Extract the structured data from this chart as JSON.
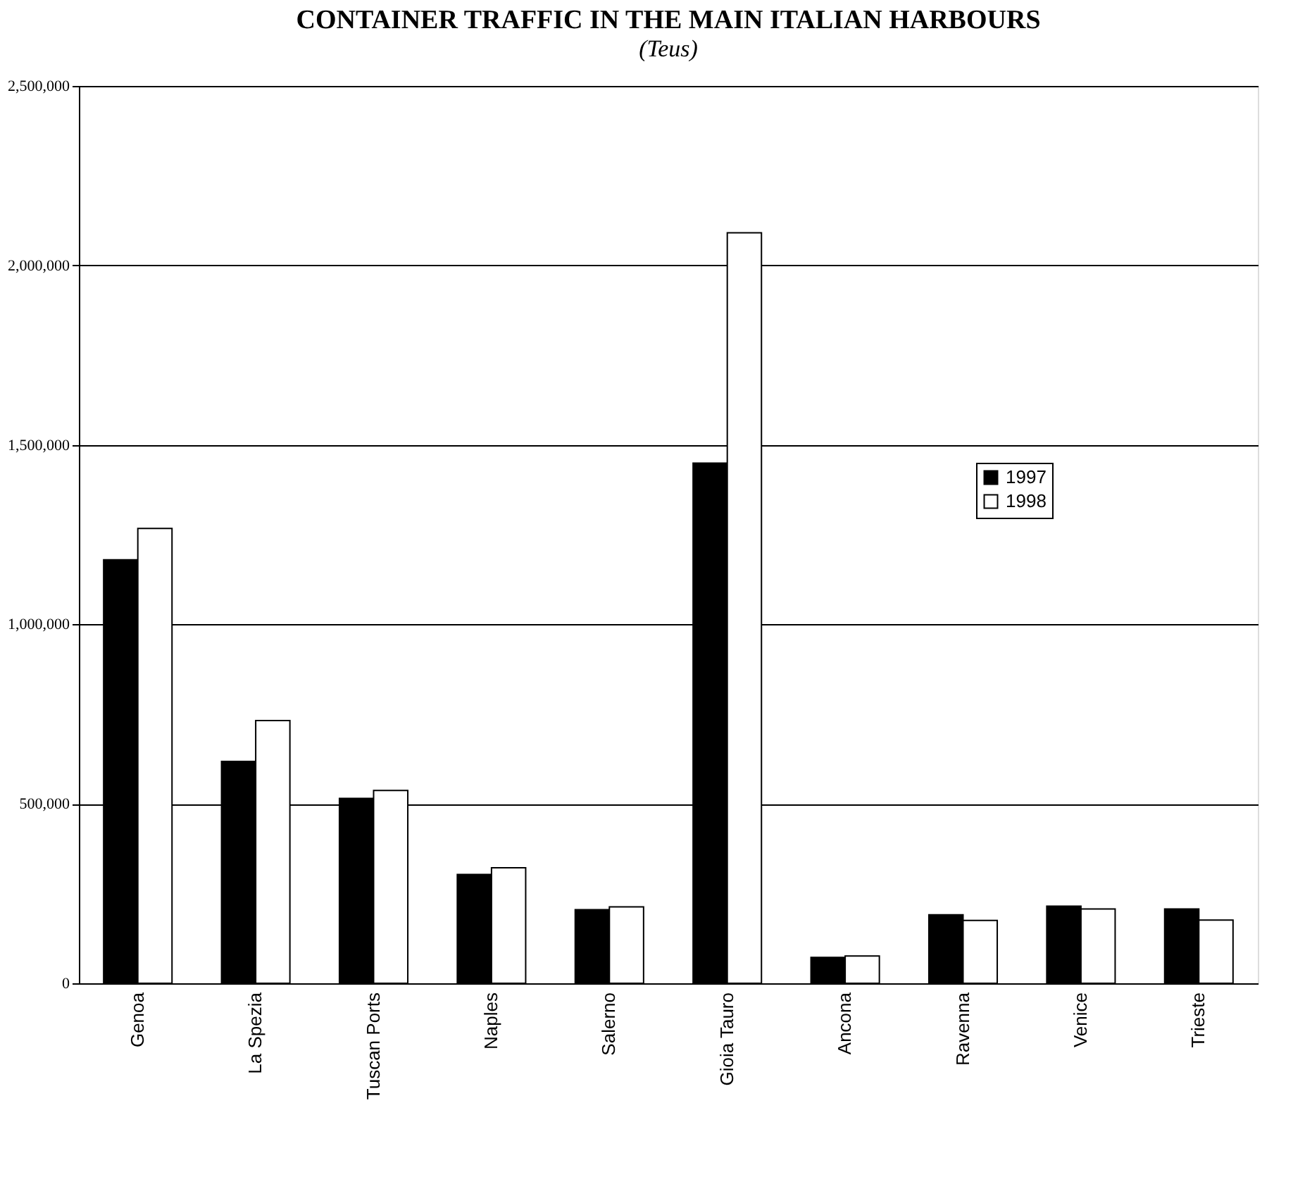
{
  "chart_data": {
    "type": "bar",
    "title": "CONTAINER TRAFFIC IN THE MAIN ITALIAN HARBOURS",
    "subtitle": "(Teus)",
    "categories": [
      "Genoa",
      "La Spezia",
      "Tuscan Ports",
      "Naples",
      "Salerno",
      "Gioia Tauro",
      "Ancona",
      "Ravenna",
      "Venice",
      "Trieste"
    ],
    "series": [
      {
        "name": "1997",
        "color": "#000000",
        "values": [
          1180000,
          618000,
          515000,
          303000,
          205000,
          1449000,
          72000,
          191000,
          215000,
          207000
        ]
      },
      {
        "name": "1998",
        "color": "#ffffff",
        "values": [
          1267000,
          732000,
          537000,
          322000,
          213000,
          2091000,
          76000,
          175000,
          207000,
          176000
        ]
      }
    ],
    "ylim": [
      0,
      2500000
    ],
    "yticks": [
      0,
      {
        "value": 500000,
        "label": "500,000"
      },
      {
        "value": 1000000,
        "label": "1,000,000"
      },
      {
        "value": 1500000,
        "label": "1,500,000"
      },
      {
        "value": 2000000,
        "label": "2,000,000"
      },
      {
        "value": 2500000,
        "label": "2,500,000"
      }
    ],
    "grid": "y",
    "legend": "right"
  }
}
